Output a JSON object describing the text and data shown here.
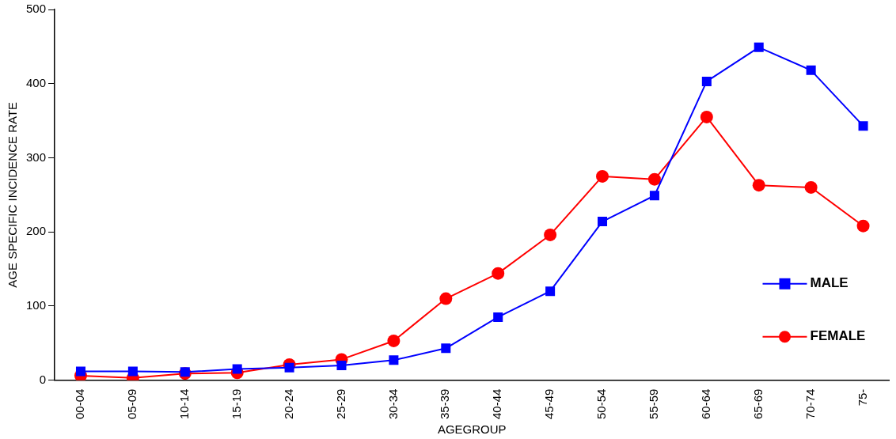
{
  "chart_data": {
    "type": "line",
    "xlabel": "AGEGROUP",
    "ylabel": "AGE SPECIFIC INCIDENCE RATE",
    "categories": [
      "00-04",
      "05-09",
      "10-14",
      "15-19",
      "20-24",
      "25-29",
      "30-34",
      "35-39",
      "40-44",
      "45-49",
      "50-54",
      "55-59",
      "60-64",
      "65-69",
      "70-74",
      "75-"
    ],
    "series": [
      {
        "name": "MALE",
        "color": "#0000ff",
        "marker": "square",
        "values": [
          12,
          12,
          11,
          15,
          17,
          20,
          27,
          43,
          85,
          120,
          214,
          249,
          403,
          449,
          418,
          343
        ]
      },
      {
        "name": "FEMALE",
        "color": "#ff0000",
        "marker": "circle",
        "values": [
          6,
          3,
          9,
          10,
          21,
          28,
          53,
          110,
          144,
          196,
          275,
          271,
          355,
          263,
          260,
          208
        ]
      }
    ],
    "ylim": [
      0,
      500
    ],
    "yticks": [
      0,
      100,
      200,
      300,
      400,
      500
    ],
    "grid": false,
    "legend": "right",
    "line_style": "solid"
  }
}
